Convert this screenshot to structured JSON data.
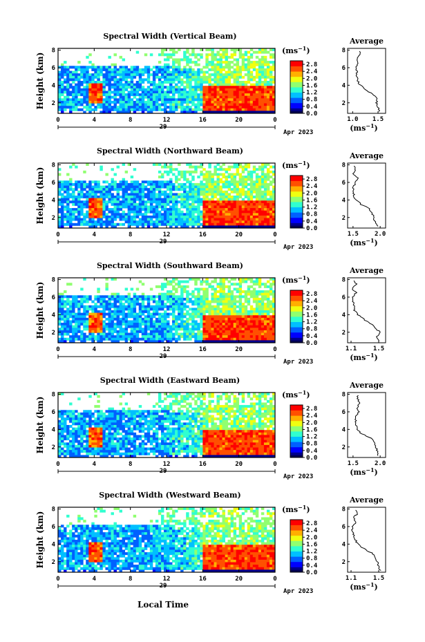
{
  "figure": {
    "xlabel": "Local Time",
    "date_day": "29",
    "date_month": "Apr 2023",
    "time_ticks": [
      "0",
      "4",
      "8",
      "12",
      "16",
      "20",
      "0"
    ],
    "time_range_hours": [
      0,
      24
    ],
    "height_ticks": [
      "2",
      "4",
      "6",
      "8"
    ],
    "height_range_km": [
      0.8,
      8.2
    ],
    "ylabel": "Height (km)",
    "colorbar_unit": "(ms",
    "colorbar_unit_sup": "−1",
    "colorbar_unit_close": ")",
    "colorbar_ticks": [
      "0.0",
      "0.4",
      "0.8",
      "1.2",
      "1.6",
      "2.0",
      "2.4",
      "2.8"
    ],
    "colorbar_range": [
      0.0,
      3.0
    ],
    "avg_title": "Average",
    "avg_unit": "(ms",
    "avg_unit_sup": "−1",
    "avg_unit_close": ")",
    "colors": {
      "jet": [
        "#00008f",
        "#0000ff",
        "#0060ff",
        "#00c0ff",
        "#30ffd0",
        "#90ff70",
        "#f0ff10",
        "#ffb000",
        "#ff5000",
        "#ff0000",
        "#c00000"
      ],
      "low_band": "#000050"
    }
  },
  "chart_data": [
    {
      "type": "heatmap",
      "title": "Spectral Width (Vertical Beam)",
      "avg_ticks": [
        "1.0",
        "1.5"
      ],
      "avg_range": [
        0.9,
        1.65
      ],
      "avg_profile": {
        "height_km": [
          1.0,
          1.5,
          2.0,
          2.5,
          3.0,
          3.5,
          4.0,
          4.5,
          5.0,
          5.5,
          6.0,
          6.5,
          7.0,
          7.5,
          8.0
        ],
        "width": [
          1.52,
          1.5,
          1.47,
          1.48,
          1.4,
          1.25,
          1.15,
          1.1,
          1.08,
          1.08,
          1.06,
          1.12,
          1.08,
          1.15,
          1.12
        ]
      }
    },
    {
      "type": "heatmap",
      "title": "Spectral Width (Northward Beam)",
      "avg_ticks": [
        "1.5",
        "2.0"
      ],
      "avg_range": [
        1.4,
        2.1
      ],
      "avg_profile": {
        "height_km": [
          1.0,
          1.5,
          2.0,
          2.5,
          3.0,
          3.5,
          4.0,
          4.5,
          5.0,
          5.5,
          6.0,
          6.5,
          7.0,
          7.5,
          8.0
        ],
        "width": [
          1.95,
          1.9,
          1.88,
          1.85,
          1.8,
          1.65,
          1.55,
          1.52,
          1.5,
          1.5,
          1.55,
          1.58,
          1.5,
          1.55,
          1.52
        ]
      }
    },
    {
      "type": "heatmap",
      "title": "Spectral Width (Southward Beam)",
      "avg_ticks": [
        "1.1",
        "1.5"
      ],
      "avg_range": [
        1.05,
        1.6
      ],
      "avg_profile": {
        "height_km": [
          1.0,
          1.5,
          2.0,
          2.5,
          3.0,
          3.5,
          4.0,
          4.5,
          5.0,
          5.5,
          6.0,
          6.5,
          7.0,
          7.5,
          8.0
        ],
        "width": [
          1.5,
          1.48,
          1.52,
          1.45,
          1.38,
          1.28,
          1.2,
          1.15,
          1.14,
          1.13,
          1.12,
          1.17,
          1.12,
          1.18,
          1.14
        ]
      }
    },
    {
      "type": "heatmap",
      "title": "Spectral Width (Eastward Beam)",
      "avg_ticks": [
        "1.5",
        "2.0"
      ],
      "avg_range": [
        1.4,
        2.1
      ],
      "avg_profile": {
        "height_km": [
          1.0,
          1.5,
          2.0,
          2.5,
          3.0,
          3.5,
          4.0,
          4.5,
          5.0,
          5.5,
          6.0,
          6.5,
          7.0,
          7.5,
          8.0
        ],
        "width": [
          1.97,
          1.95,
          1.92,
          1.9,
          1.85,
          1.65,
          1.58,
          1.55,
          1.55,
          1.56,
          1.6,
          1.58,
          1.62,
          1.58,
          1.6
        ]
      }
    },
    {
      "type": "heatmap",
      "title": "Spectral Width (Westward Beam)",
      "avg_ticks": [
        "1.1",
        "1.5"
      ],
      "avg_range": [
        1.05,
        1.6
      ],
      "avg_profile": {
        "height_km": [
          1.0,
          1.5,
          2.0,
          2.5,
          3.0,
          3.5,
          4.0,
          4.5,
          5.0,
          5.5,
          6.0,
          6.5,
          7.0,
          7.5,
          8.0
        ],
        "width": [
          1.52,
          1.5,
          1.48,
          1.46,
          1.4,
          1.28,
          1.2,
          1.16,
          1.14,
          1.12,
          1.12,
          1.18,
          1.13,
          1.2,
          1.16
        ]
      }
    }
  ]
}
